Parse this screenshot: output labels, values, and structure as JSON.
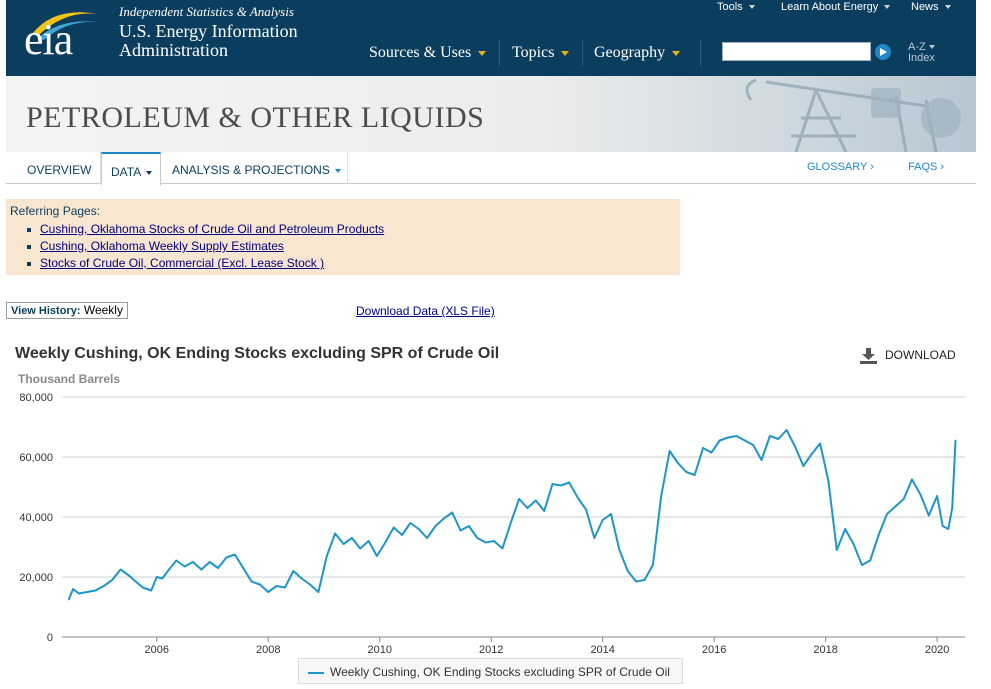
{
  "header": {
    "logo_text": "eia",
    "tagline": "Independent Statistics & Analysis",
    "agency_line1": "U.S. Energy Information",
    "agency_line2": "Administration",
    "top_links": [
      {
        "label": "Tools"
      },
      {
        "label": "Learn About Energy"
      },
      {
        "label": "News"
      }
    ],
    "main_nav": [
      {
        "label": "Sources & Uses"
      },
      {
        "label": "Topics"
      },
      {
        "label": "Geography"
      }
    ],
    "search_placeholder": "",
    "az_line1": "A-Z",
    "az_line2": "Index"
  },
  "banner": {
    "title": "PETROLEUM & OTHER LIQUIDS"
  },
  "subnav": {
    "tabs": [
      {
        "label": "OVERVIEW"
      },
      {
        "label": "DATA"
      },
      {
        "label": "ANALYSIS & PROJECTIONS"
      }
    ],
    "glossary": "GLOSSARY ›",
    "faqs": "FAQS ›"
  },
  "referring": {
    "title": "Referring Pages:",
    "links": [
      "Cushing, Oklahoma Stocks of Crude Oil and Petroleum Products",
      "Cushing, Oklahoma Weekly Supply Estimates",
      "Stocks of Crude Oil, Commercial (Excl. Lease Stock )"
    ]
  },
  "view_history": {
    "label": "View History:",
    "value": "Weekly"
  },
  "download_data": "Download Data (XLS File)",
  "download_button": "DOWNLOAD",
  "colors": {
    "header_bg": "#0b3e5e",
    "series": "#1e96c8",
    "accent_caret": "#e8b40f",
    "referring_bg": "#f8e6d0"
  },
  "chart_data": {
    "type": "line",
    "title": "Weekly Cushing, OK Ending Stocks excluding SPR of Crude Oil",
    "ylabel": "Thousand Barrels",
    "xlabel": "",
    "ylim": [
      0,
      80000
    ],
    "xlim": [
      2004.3,
      2020.5
    ],
    "y_ticks": [
      "0",
      "20,000",
      "40,000",
      "60,000",
      "80,000"
    ],
    "y_tick_values": [
      0,
      20000,
      40000,
      60000,
      80000
    ],
    "x_ticks": [
      "2006",
      "2008",
      "2010",
      "2012",
      "2014",
      "2016",
      "2018",
      "2020"
    ],
    "x_tick_values": [
      2006,
      2008,
      2010,
      2012,
      2014,
      2016,
      2018,
      2020
    ],
    "grid": true,
    "legend_position": "bottom-center",
    "series": [
      {
        "name": "Weekly Cushing, OK Ending Stocks excluding SPR of Crude Oil",
        "x": [
          2004.42,
          2004.5,
          2004.6,
          2004.75,
          2004.9,
          2005.05,
          2005.2,
          2005.35,
          2005.5,
          2005.62,
          2005.75,
          2005.9,
          2006.0,
          2006.1,
          2006.2,
          2006.35,
          2006.5,
          2006.65,
          2006.8,
          2006.95,
          2007.1,
          2007.25,
          2007.4,
          2007.55,
          2007.7,
          2007.85,
          2008.0,
          2008.15,
          2008.3,
          2008.45,
          2008.6,
          2008.75,
          2008.9,
          2009.05,
          2009.2,
          2009.35,
          2009.5,
          2009.65,
          2009.8,
          2009.95,
          2010.1,
          2010.25,
          2010.4,
          2010.55,
          2010.7,
          2010.85,
          2011.0,
          2011.15,
          2011.3,
          2011.45,
          2011.6,
          2011.75,
          2011.9,
          2012.05,
          2012.2,
          2012.35,
          2012.5,
          2012.65,
          2012.8,
          2012.95,
          2013.1,
          2013.25,
          2013.4,
          2013.55,
          2013.7,
          2013.85,
          2014.0,
          2014.15,
          2014.3,
          2014.45,
          2014.6,
          2014.75,
          2014.9,
          2015.05,
          2015.2,
          2015.35,
          2015.5,
          2015.65,
          2015.8,
          2015.95,
          2016.1,
          2016.25,
          2016.4,
          2016.55,
          2016.7,
          2016.85,
          2017.0,
          2017.15,
          2017.3,
          2017.45,
          2017.6,
          2017.75,
          2017.9,
          2018.05,
          2018.2,
          2018.35,
          2018.5,
          2018.65,
          2018.8,
          2018.95,
          2019.1,
          2019.25,
          2019.4,
          2019.55,
          2019.7,
          2019.85,
          2020.0,
          2020.1,
          2020.2,
          2020.27,
          2020.33
        ],
        "values": [
          12500,
          16000,
          14500,
          15000,
          15500,
          17000,
          19000,
          22500,
          20500,
          18500,
          16500,
          15500,
          20000,
          19500,
          22000,
          25500,
          23500,
          25000,
          22500,
          25000,
          23000,
          26500,
          27500,
          23000,
          18500,
          17500,
          15000,
          17000,
          16500,
          22000,
          19500,
          17500,
          15000,
          27000,
          34500,
          31000,
          33000,
          29500,
          32000,
          27000,
          31500,
          36500,
          34000,
          38000,
          36000,
          33000,
          37000,
          39500,
          41500,
          35500,
          37000,
          33000,
          31500,
          32000,
          29500,
          38000,
          46000,
          43000,
          45500,
          42000,
          51000,
          50500,
          51500,
          46500,
          42500,
          33000,
          39000,
          41000,
          29000,
          22000,
          18500,
          19000,
          24000,
          47000,
          62000,
          58000,
          55000,
          54000,
          63000,
          61500,
          65500,
          66500,
          67000,
          65500,
          64000,
          59000,
          67000,
          66000,
          69000,
          63500,
          57000,
          61000,
          64500,
          52000,
          29000,
          36000,
          31000,
          24000,
          25500,
          34000,
          41000,
          43500,
          46000,
          52500,
          47500,
          40500,
          47000,
          37000,
          36000,
          43000,
          65500
        ]
      }
    ]
  }
}
